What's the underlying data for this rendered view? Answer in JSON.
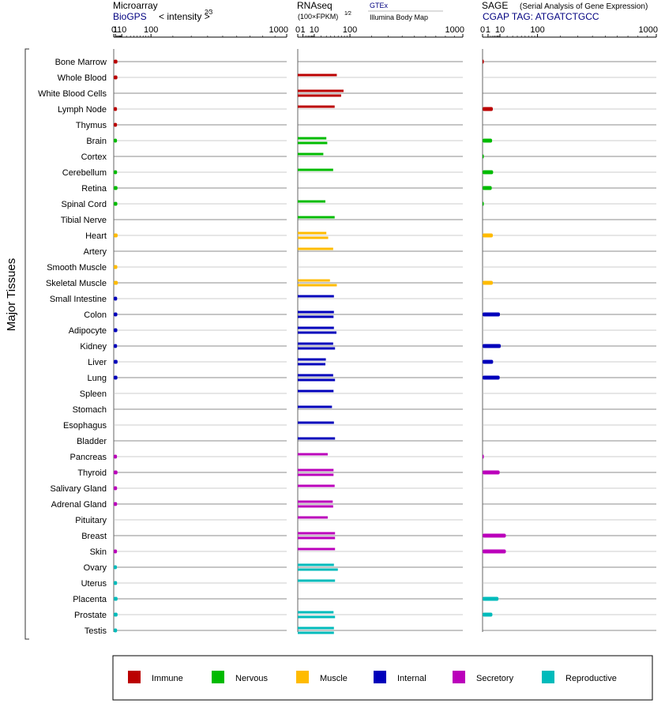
{
  "chart_data": {
    "type": "bar",
    "side_label": "Major Tissues",
    "tissues": [
      "Bone Marrow",
      "Whole Blood",
      "White Blood Cells",
      "Lymph Node",
      "Thymus",
      "Brain",
      "Cortex",
      "Cerebellum",
      "Retina",
      "Spinal Cord",
      "Tibial Nerve",
      "Heart",
      "Artery",
      "Smooth Muscle",
      "Skeletal Muscle",
      "Small Intestine",
      "Colon",
      "Adipocyte",
      "Kidney",
      "Liver",
      "Lung",
      "Spleen",
      "Stomach",
      "Esophagus",
      "Bladder",
      "Pancreas",
      "Thyroid",
      "Salivary Gland",
      "Adrenal Gland",
      "Pituitary",
      "Breast",
      "Skin",
      "Ovary",
      "Uterus",
      "Placenta",
      "Prostate",
      "Testis"
    ],
    "tissue_groups": [
      "immune",
      "immune",
      "immune",
      "immune",
      "immune",
      "nervous",
      "nervous",
      "nervous",
      "nervous",
      "nervous",
      "nervous",
      "muscle",
      "muscle",
      "muscle",
      "muscle",
      "internal",
      "internal",
      "internal",
      "internal",
      "internal",
      "internal",
      "internal",
      "internal",
      "internal",
      "internal",
      "secretory",
      "secretory",
      "secretory",
      "secretory",
      "secretory",
      "secretory",
      "secretory",
      "reproductive",
      "reproductive",
      "reproductive",
      "reproductive",
      "reproductive"
    ],
    "legend": [
      {
        "key": "immune",
        "label": "Immune",
        "color": "#bb0000"
      },
      {
        "key": "nervous",
        "label": "Nervous",
        "color": "#00bb00"
      },
      {
        "key": "muscle",
        "label": "Muscle",
        "color": "#ffbb00"
      },
      {
        "key": "internal",
        "label": "Internal",
        "color": "#0000bb"
      },
      {
        "key": "secretory",
        "label": "Secretory",
        "color": "#bb00bb"
      },
      {
        "key": "reproductive",
        "label": "Reproductive",
        "color": "#00bbbb"
      }
    ],
    "panels": [
      {
        "id": "microarray",
        "title": "Microarray",
        "subtitle": "BioGPS",
        "scale_label": "< intensity >",
        "scale_exponent": "2⁄3",
        "ticks": [
          "0",
          "1",
          "10",
          "100",
          "1000"
        ],
        "exponent": 0.6667,
        "xlim": [
          0,
          1000
        ],
        "values": [
          [
            3.1
          ],
          [
            3.1
          ],
          [],
          [
            2.6
          ],
          [
            2.6
          ],
          [
            2.6
          ],
          [],
          [
            2.7
          ],
          [
            3.2
          ],
          [
            3.0
          ],
          [],
          [
            3.4
          ],
          [],
          [
            3.0
          ],
          [
            3.6
          ],
          [
            2.8
          ],
          [
            3.0
          ],
          [
            3.0
          ],
          [
            2.7
          ],
          [
            3.3
          ],
          [
            3.1
          ],
          [],
          [],
          [],
          [],
          [
            2.6
          ],
          [
            3.2
          ],
          [
            2.7
          ],
          [
            2.7
          ],
          [],
          [],
          [
            2.6
          ],
          [
            2.5
          ],
          [
            2.7
          ],
          [
            3.3
          ],
          [
            3.3
          ],
          [
            2.7
          ]
        ]
      },
      {
        "id": "rnaseq",
        "title": "RNAseq",
        "subtitle": "(100×FPKM)",
        "scale_exponent": "1⁄2",
        "sources": [
          "GTEx",
          "Illumina Body Map"
        ],
        "ticks": [
          "0",
          "1",
          "10",
          "100",
          "1000"
        ],
        "exponent": 0.5,
        "xlim": [
          0,
          1000
        ],
        "values": [
          [],
          [
            56
          ],
          [],
          [],
          [],
          [],
          [],
          [],
          [],
          [],
          [],
          [],
          [],
          [],
          [],
          [],
          [],
          [],
          [],
          [],
          [],
          [],
          [],
          [],
          [],
          [],
          [],
          [],
          [],
          [],
          [],
          [],
          [],
          [],
          [],
          [],
          []
        ],
        "gtex": [
          [],
          [
            56
          ],
          [
            77
          ],
          [
            50
          ],
          [],
          [
            30
          ],
          [
            24
          ],
          [
            46
          ],
          [],
          [
            28
          ],
          [
            50
          ],
          [
            30
          ],
          [
            46
          ],
          [],
          [
            38
          ],
          [
            48
          ],
          [
            48
          ],
          [
            48
          ],
          [
            46
          ],
          [
            29
          ],
          [
            46
          ],
          [
            47
          ],
          [
            43
          ],
          [
            48
          ],
          [
            51
          ],
          [
            33
          ],
          [
            47
          ],
          [
            50
          ],
          [
            45
          ],
          [
            33
          ],
          [
            51
          ],
          [
            51
          ],
          [
            48
          ],
          [
            51
          ],
          [],
          [
            47
          ],
          [
            48
          ]
        ],
        "ibm": [
          [],
          [],
          [
            69
          ],
          [],
          [],
          [
            32
          ],
          [],
          [],
          [],
          [],
          [],
          [
            34
          ],
          [],
          [],
          [
            56
          ],
          [],
          [
            47
          ],
          [
            55
          ],
          [
            51
          ],
          [
            28
          ],
          [
            51
          ],
          [],
          [],
          [],
          [],
          [],
          [
            47
          ],
          [],
          [
            46
          ],
          [],
          [
            51
          ],
          [],
          [
            59
          ],
          [],
          [],
          [
            51
          ],
          [
            48
          ]
        ]
      },
      {
        "id": "sage",
        "title": "SAGE",
        "subtitle": "CGAP  TAG: ATGATCTGCC",
        "note": "(Serial Analysis of Gene Expression)",
        "ticks": [
          "0",
          "1",
          "10",
          "100",
          "1000"
        ],
        "exponent": 0.5,
        "xlim": [
          0,
          1000
        ],
        "values": [
          [
            0.05
          ],
          [],
          [],
          [
            3.5
          ],
          [],
          [
            3.0
          ],
          [
            0.05
          ],
          [
            3.7
          ],
          [
            2.8
          ],
          [
            0.05
          ],
          [],
          [
            3.5
          ],
          [],
          [],
          [
            3.5
          ],
          [],
          [
            10
          ],
          [],
          [
            11
          ],
          [
            3.7
          ],
          [
            9.7
          ],
          [],
          [],
          [],
          [],
          [
            0.05
          ],
          [
            9.7
          ],
          [],
          [],
          [],
          [
            18
          ],
          [
            18
          ],
          [],
          [],
          [
            8.4
          ],
          [
            3.2
          ],
          []
        ]
      }
    ]
  }
}
